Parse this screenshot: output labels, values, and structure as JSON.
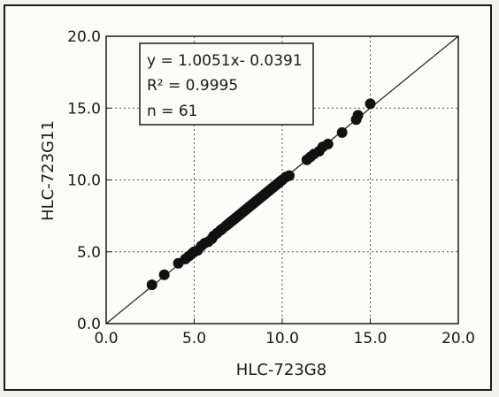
{
  "chart_data": {
    "type": "scatter",
    "xlabel": "HLC-723G8",
    "ylabel": "HLC-723G11",
    "xlim": [
      0,
      20
    ],
    "ylim": [
      0,
      20
    ],
    "xticks": [
      "0.0",
      "5.0",
      "10.0",
      "15.0",
      "20.0"
    ],
    "yticks": [
      "0.0",
      "5.0",
      "10.0",
      "15.0",
      "20.0"
    ],
    "grid": true,
    "identity_line": true,
    "annotation": {
      "equation": "y = 1.0051x- 0.0391",
      "r2": "R² = 0.9995",
      "n": "n = 61"
    },
    "point_color": "#111111",
    "points": [
      [
        2.6,
        2.7
      ],
      [
        3.3,
        3.4
      ],
      [
        4.1,
        4.2
      ],
      [
        4.5,
        4.5
      ],
      [
        4.7,
        4.7
      ],
      [
        4.9,
        4.9
      ],
      [
        5.0,
        5.0
      ],
      [
        5.2,
        5.1
      ],
      [
        5.4,
        5.4
      ],
      [
        5.6,
        5.6
      ],
      [
        5.8,
        5.7
      ],
      [
        6.0,
        5.9
      ],
      [
        6.1,
        6.1
      ],
      [
        6.3,
        6.3
      ],
      [
        6.5,
        6.5
      ],
      [
        6.6,
        6.6
      ],
      [
        6.8,
        6.8
      ],
      [
        6.9,
        6.9
      ],
      [
        7.0,
        7.0
      ],
      [
        7.1,
        7.1
      ],
      [
        7.2,
        7.2
      ],
      [
        7.3,
        7.3
      ],
      [
        7.4,
        7.4
      ],
      [
        7.5,
        7.5
      ],
      [
        7.6,
        7.6
      ],
      [
        7.7,
        7.7
      ],
      [
        7.8,
        7.8
      ],
      [
        7.9,
        7.9
      ],
      [
        8.0,
        8.0
      ],
      [
        8.1,
        8.1
      ],
      [
        8.2,
        8.2
      ],
      [
        8.3,
        8.3
      ],
      [
        8.4,
        8.4
      ],
      [
        8.5,
        8.5
      ],
      [
        8.6,
        8.6
      ],
      [
        8.7,
        8.7
      ],
      [
        8.8,
        8.8
      ],
      [
        8.9,
        8.9
      ],
      [
        9.0,
        9.0
      ],
      [
        9.1,
        9.1
      ],
      [
        9.2,
        9.2
      ],
      [
        9.3,
        9.3
      ],
      [
        9.4,
        9.4
      ],
      [
        9.5,
        9.5
      ],
      [
        9.6,
        9.6
      ],
      [
        9.7,
        9.7
      ],
      [
        9.8,
        9.8
      ],
      [
        9.9,
        9.9
      ],
      [
        10.0,
        10.0
      ],
      [
        10.2,
        10.2
      ],
      [
        10.4,
        10.3
      ],
      [
        11.4,
        11.4
      ],
      [
        11.6,
        11.6
      ],
      [
        11.8,
        11.8
      ],
      [
        12.1,
        12.0
      ],
      [
        12.3,
        12.3
      ],
      [
        12.6,
        12.5
      ],
      [
        13.4,
        13.3
      ],
      [
        14.2,
        14.2
      ],
      [
        14.3,
        14.5
      ],
      [
        15.0,
        15.3
      ]
    ]
  }
}
